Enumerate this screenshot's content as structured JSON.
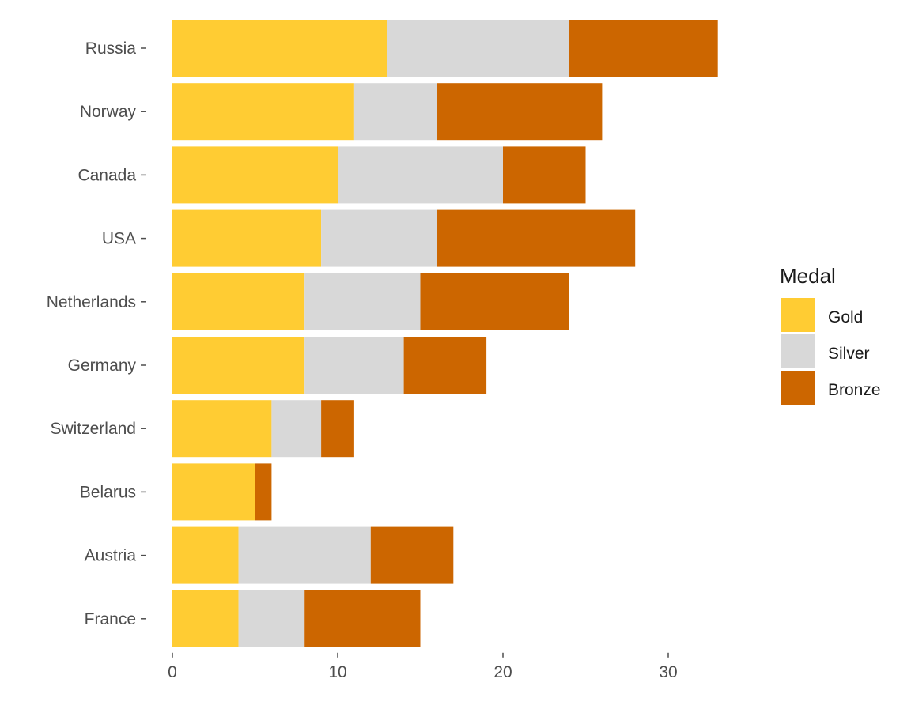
{
  "chart_data": {
    "type": "bar",
    "orientation": "horizontal",
    "stacked": true,
    "title": "",
    "xlabel": "",
    "ylabel": "",
    "categories": [
      "Russia",
      "Norway",
      "Canada",
      "USA",
      "Netherlands",
      "Germany",
      "Switzerland",
      "Belarus",
      "Austria",
      "France"
    ],
    "series": [
      {
        "name": "Gold",
        "color": "#ffcc33",
        "values": [
          13,
          11,
          10,
          9,
          8,
          8,
          6,
          5,
          4,
          4
        ]
      },
      {
        "name": "Silver",
        "color": "#d8d8d8",
        "values": [
          11,
          5,
          10,
          7,
          7,
          6,
          3,
          0,
          8,
          4
        ]
      },
      {
        "name": "Bronze",
        "color": "#cc6600",
        "values": [
          9,
          10,
          5,
          12,
          9,
          5,
          2,
          1,
          5,
          7
        ]
      }
    ],
    "xlim": [
      0,
      33
    ],
    "xticks": [
      0,
      10,
      20,
      30
    ],
    "grid": false,
    "legend": {
      "title": "Medal",
      "position": "right"
    }
  }
}
